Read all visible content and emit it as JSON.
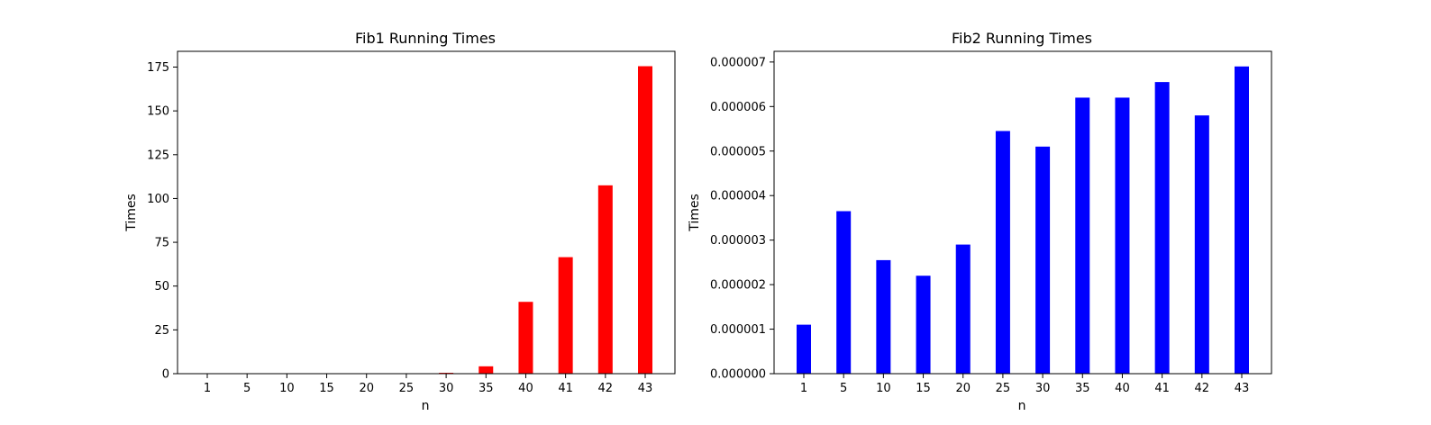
{
  "chart_data": [
    {
      "type": "bar",
      "title": "Fib1 Running Times",
      "xlabel": "n",
      "ylabel": "Times",
      "categories": [
        "1",
        "5",
        "10",
        "15",
        "20",
        "25",
        "30",
        "35",
        "40",
        "41",
        "42",
        "43"
      ],
      "values": [
        0.0,
        0.0,
        0.0,
        0.0,
        0.0,
        0.0,
        0.5,
        4.2,
        41.0,
        66.5,
        107.5,
        175.5
      ],
      "yticks": [
        0,
        25,
        50,
        75,
        100,
        125,
        150,
        175
      ],
      "ytick_labels": [
        "0",
        "25",
        "50",
        "75",
        "100",
        "125",
        "150",
        "175"
      ],
      "ylim": [
        0,
        184
      ],
      "bar_color": "#ff0000",
      "grid": false
    },
    {
      "type": "bar",
      "title": "Fib2 Running Times",
      "xlabel": "n",
      "ylabel": "Times",
      "categories": [
        "1",
        "5",
        "10",
        "15",
        "20",
        "25",
        "30",
        "35",
        "40",
        "41",
        "42",
        "43"
      ],
      "values": [
        1.1e-06,
        3.65e-06,
        2.55e-06,
        2.2e-06,
        2.9e-06,
        5.45e-06,
        5.1e-06,
        6.2e-06,
        6.2e-06,
        6.55e-06,
        5.8e-06,
        6.9e-06
      ],
      "yticks": [
        0,
        1e-06,
        2e-06,
        3e-06,
        4e-06,
        5e-06,
        6e-06,
        7e-06
      ],
      "ytick_labels": [
        "0.000000",
        "0.000001",
        "0.000002",
        "0.000003",
        "0.000004",
        "0.000005",
        "0.000006",
        "0.000007"
      ],
      "ylim": [
        0,
        7.24e-06
      ],
      "bar_color": "#0000ff",
      "grid": false
    }
  ]
}
